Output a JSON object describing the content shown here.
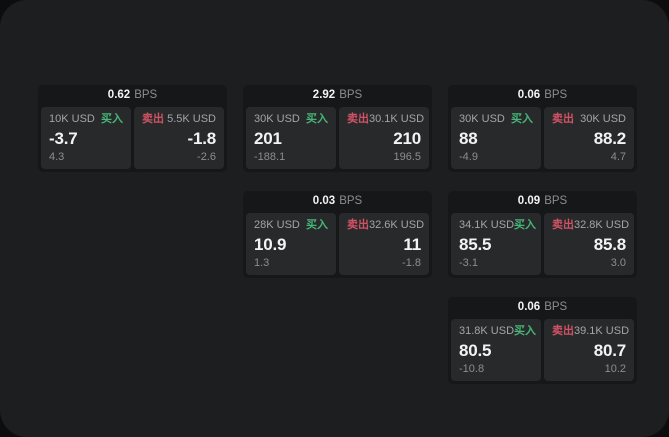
{
  "labels": {
    "buy": "买入",
    "sell": "卖出",
    "bps_unit": "BPS"
  },
  "colors": {
    "page_outside_bg": "#0d0d0e",
    "panel_bg": "#1d1e1f",
    "card_bg": "#161719",
    "tile_bg": "#28292b",
    "buy_green": "#47b578",
    "sell_red": "#cf5364",
    "text_primary": "#f2f3f4",
    "text_secondary": "#a2a5a8",
    "text_muted": "#8b8d90"
  },
  "cards": [
    {
      "row": 1,
      "col": 1,
      "bps": "0.62",
      "buy": {
        "size": "10K USD",
        "price": "-3.7",
        "delta": "4.3"
      },
      "sell": {
        "size": "5.5K USD",
        "price": "-1.8",
        "delta": "-2.6"
      }
    },
    {
      "row": 1,
      "col": 2,
      "bps": "2.92",
      "buy": {
        "size": "30K USD",
        "price": "201",
        "delta": "-188.1"
      },
      "sell": {
        "size": "30.1K USD",
        "price": "210",
        "delta": "196.5"
      }
    },
    {
      "row": 1,
      "col": 3,
      "bps": "0.06",
      "buy": {
        "size": "30K USD",
        "price": "88",
        "delta": "-4.9"
      },
      "sell": {
        "size": "30K USD",
        "price": "88.2",
        "delta": "4.7"
      }
    },
    {
      "row": 2,
      "col": 2,
      "bps": "0.03",
      "buy": {
        "size": "28K USD",
        "price": "10.9",
        "delta": "1.3"
      },
      "sell": {
        "size": "32.6K USD",
        "price": "11",
        "delta": "-1.8"
      }
    },
    {
      "row": 2,
      "col": 3,
      "bps": "0.09",
      "buy": {
        "size": "34.1K USD",
        "price": "85.5",
        "delta": "-3.1"
      },
      "sell": {
        "size": "32.8K USD",
        "price": "85.8",
        "delta": "3.0"
      }
    },
    {
      "row": 3,
      "col": 3,
      "bps": "0.06",
      "buy": {
        "size": "31.8K USD",
        "price": "80.5",
        "delta": "-10.8"
      },
      "sell": {
        "size": "39.1K USD",
        "price": "80.7",
        "delta": "10.2"
      }
    }
  ]
}
